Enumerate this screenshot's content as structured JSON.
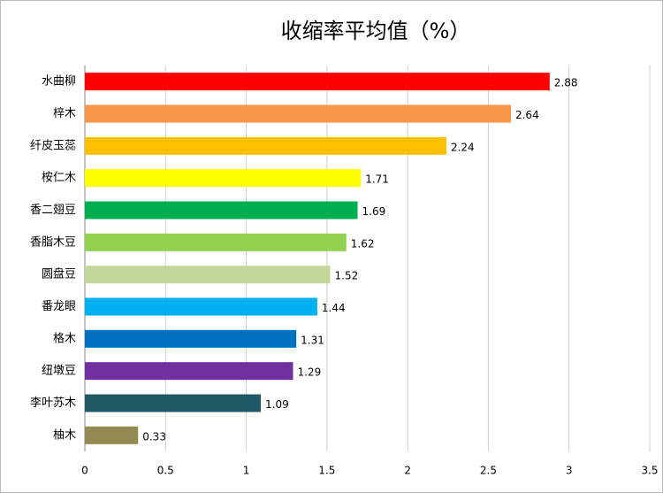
{
  "chart_data": {
    "type": "bar",
    "orientation": "horizontal",
    "title": "收缩率平均值（%）",
    "categories": [
      "水曲柳",
      "梓木",
      "纤皮玉蕊",
      "桉仁木",
      "香二翅豆",
      "香脂木豆",
      "圆盘豆",
      "番龙眼",
      "格木",
      "纽墩豆",
      "李叶苏木",
      "柚木"
    ],
    "values": [
      2.88,
      2.64,
      2.24,
      1.71,
      1.69,
      1.62,
      1.52,
      1.44,
      1.31,
      1.29,
      1.09,
      0.33
    ],
    "colors": [
      "#ff0000",
      "#f79646",
      "#ffc000",
      "#ffff00",
      "#00b050",
      "#92d050",
      "#c4d79b",
      "#00b0f0",
      "#0070c0",
      "#7030a0",
      "#215868",
      "#948a54"
    ],
    "xlim": [
      0,
      3.5
    ],
    "xticks": [
      0,
      0.5,
      1,
      1.5,
      2,
      2.5,
      3,
      3.5
    ],
    "grid": true
  }
}
